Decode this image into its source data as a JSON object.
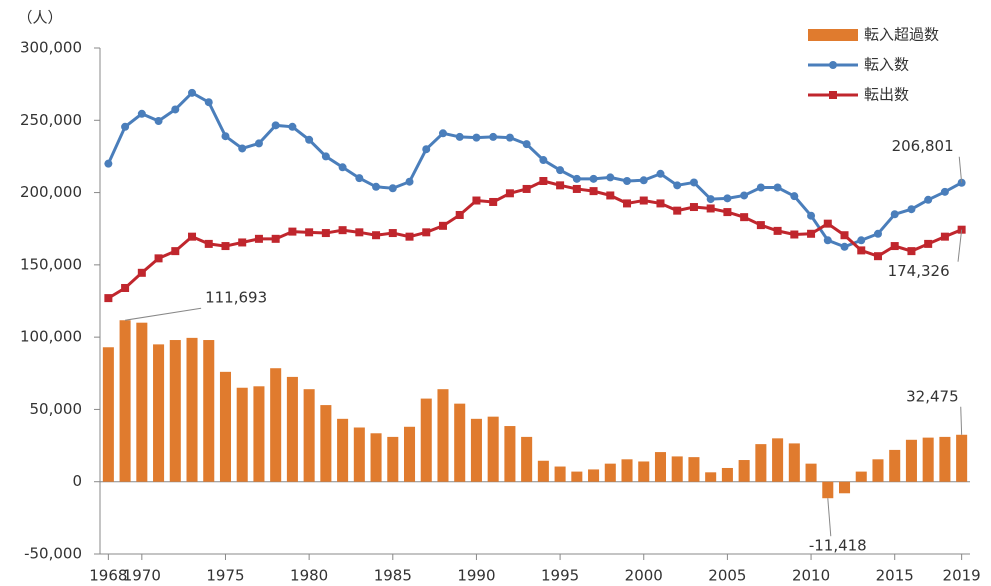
{
  "chart_data": {
    "type": "combo",
    "y_label": "（人）",
    "x": [
      1968,
      1969,
      1970,
      1971,
      1972,
      1973,
      1974,
      1975,
      1976,
      1977,
      1978,
      1979,
      1980,
      1981,
      1982,
      1983,
      1984,
      1985,
      1986,
      1987,
      1988,
      1989,
      1990,
      1991,
      1992,
      1993,
      1994,
      1995,
      1996,
      1997,
      1998,
      1999,
      2000,
      2001,
      2002,
      2003,
      2004,
      2005,
      2006,
      2007,
      2008,
      2009,
      2010,
      2011,
      2012,
      2013,
      2014,
      2015,
      2016,
      2017,
      2018,
      2019
    ],
    "xlim": [
      1967.5,
      2019.5
    ],
    "xticks": [
      1968,
      1970,
      1975,
      1980,
      1985,
      1990,
      1995,
      2000,
      2005,
      2010,
      2015,
      2019
    ],
    "ylim": [
      -50000,
      300000
    ],
    "yticks": [
      {
        "value": -50000,
        "label": "-50,000"
      },
      0,
      {
        "value": 50000,
        "label": "50,000"
      },
      {
        "value": 100000,
        "label": "100,000"
      },
      {
        "value": 150000,
        "label": "150,000"
      },
      {
        "value": 200000,
        "label": "200,000"
      },
      {
        "value": 250000,
        "label": "250,000"
      },
      {
        "value": 300000,
        "label": "300,000"
      }
    ],
    "legend": "top-right",
    "series": [
      {
        "name": "転入超過数",
        "type": "bar",
        "color": "#e07b2e",
        "values": [
          93000,
          111693,
          110000,
          95000,
          98000,
          99500,
          98000,
          76000,
          65000,
          66000,
          78500,
          72500,
          64000,
          53000,
          43500,
          37500,
          33500,
          31000,
          38000,
          57500,
          64000,
          54000,
          43500,
          45000,
          38500,
          31000,
          14500,
          10500,
          7000,
          8500,
          12500,
          15500,
          14000,
          20500,
          17500,
          17000,
          6500,
          9500,
          15000,
          26000,
          30000,
          26500,
          12500,
          -11418,
          -8000,
          7000,
          15500,
          22000,
          29000,
          30500,
          31000,
          32475
        ],
        "value_labels": [
          null,
          "111,693",
          null,
          null,
          null,
          null,
          null,
          null,
          null,
          null,
          null,
          null,
          null,
          null,
          null,
          null,
          null,
          null,
          null,
          null,
          null,
          null,
          null,
          null,
          null,
          null,
          null,
          null,
          null,
          null,
          null,
          null,
          null,
          null,
          null,
          null,
          null,
          null,
          null,
          null,
          null,
          null,
          null,
          "-11,418",
          null,
          null,
          null,
          null,
          null,
          null,
          null,
          "32,475"
        ]
      },
      {
        "name": "転入数",
        "type": "line",
        "color": "#4a7ebb",
        "values": [
          220000,
          245500,
          254500,
          249500,
          257500,
          269000,
          262500,
          239000,
          230500,
          234000,
          246500,
          245500,
          236500,
          225000,
          217500,
          210000,
          204000,
          203000,
          207500,
          230000,
          241000,
          238500,
          238000,
          238500,
          238000,
          233500,
          222500,
          215500,
          209500,
          209500,
          210500,
          208000,
          208500,
          213000,
          205000,
          207000,
          195500,
          196000,
          198000,
          203500,
          203500,
          197500,
          184000,
          167000,
          162500,
          167000,
          171500,
          185000,
          188500,
          195000,
          200500,
          206801
        ],
        "value_labels": [
          null,
          null,
          null,
          null,
          null,
          null,
          null,
          null,
          null,
          null,
          null,
          null,
          null,
          null,
          null,
          null,
          null,
          null,
          null,
          null,
          null,
          null,
          null,
          null,
          null,
          null,
          null,
          null,
          null,
          null,
          null,
          null,
          null,
          null,
          null,
          null,
          null,
          null,
          null,
          null,
          null,
          null,
          null,
          null,
          null,
          null,
          null,
          null,
          null,
          null,
          null,
          "206,801"
        ]
      },
      {
        "name": "転出数",
        "type": "line",
        "color": "#c0262d",
        "values": [
          127000,
          134000,
          144500,
          154500,
          159500,
          169500,
          164500,
          163000,
          165500,
          168000,
          168000,
          173000,
          172500,
          172000,
          174000,
          172500,
          170500,
          172000,
          169500,
          172500,
          177000,
          184500,
          194500,
          193500,
          199500,
          202500,
          208000,
          205000,
          202500,
          201000,
          198000,
          192500,
          194500,
          192500,
          187500,
          190000,
          189000,
          186500,
          183000,
          177500,
          173500,
          171000,
          171500,
          178500,
          170500,
          160000,
          156000,
          163000,
          159500,
          164500,
          169500,
          174326
        ],
        "value_labels": [
          null,
          null,
          null,
          null,
          null,
          null,
          null,
          null,
          null,
          null,
          null,
          null,
          null,
          null,
          null,
          null,
          null,
          null,
          null,
          null,
          null,
          null,
          null,
          null,
          null,
          null,
          null,
          null,
          null,
          null,
          null,
          null,
          null,
          null,
          null,
          null,
          null,
          null,
          null,
          null,
          null,
          null,
          null,
          null,
          null,
          null,
          null,
          null,
          null,
          null,
          null,
          "174,326"
        ]
      }
    ]
  }
}
